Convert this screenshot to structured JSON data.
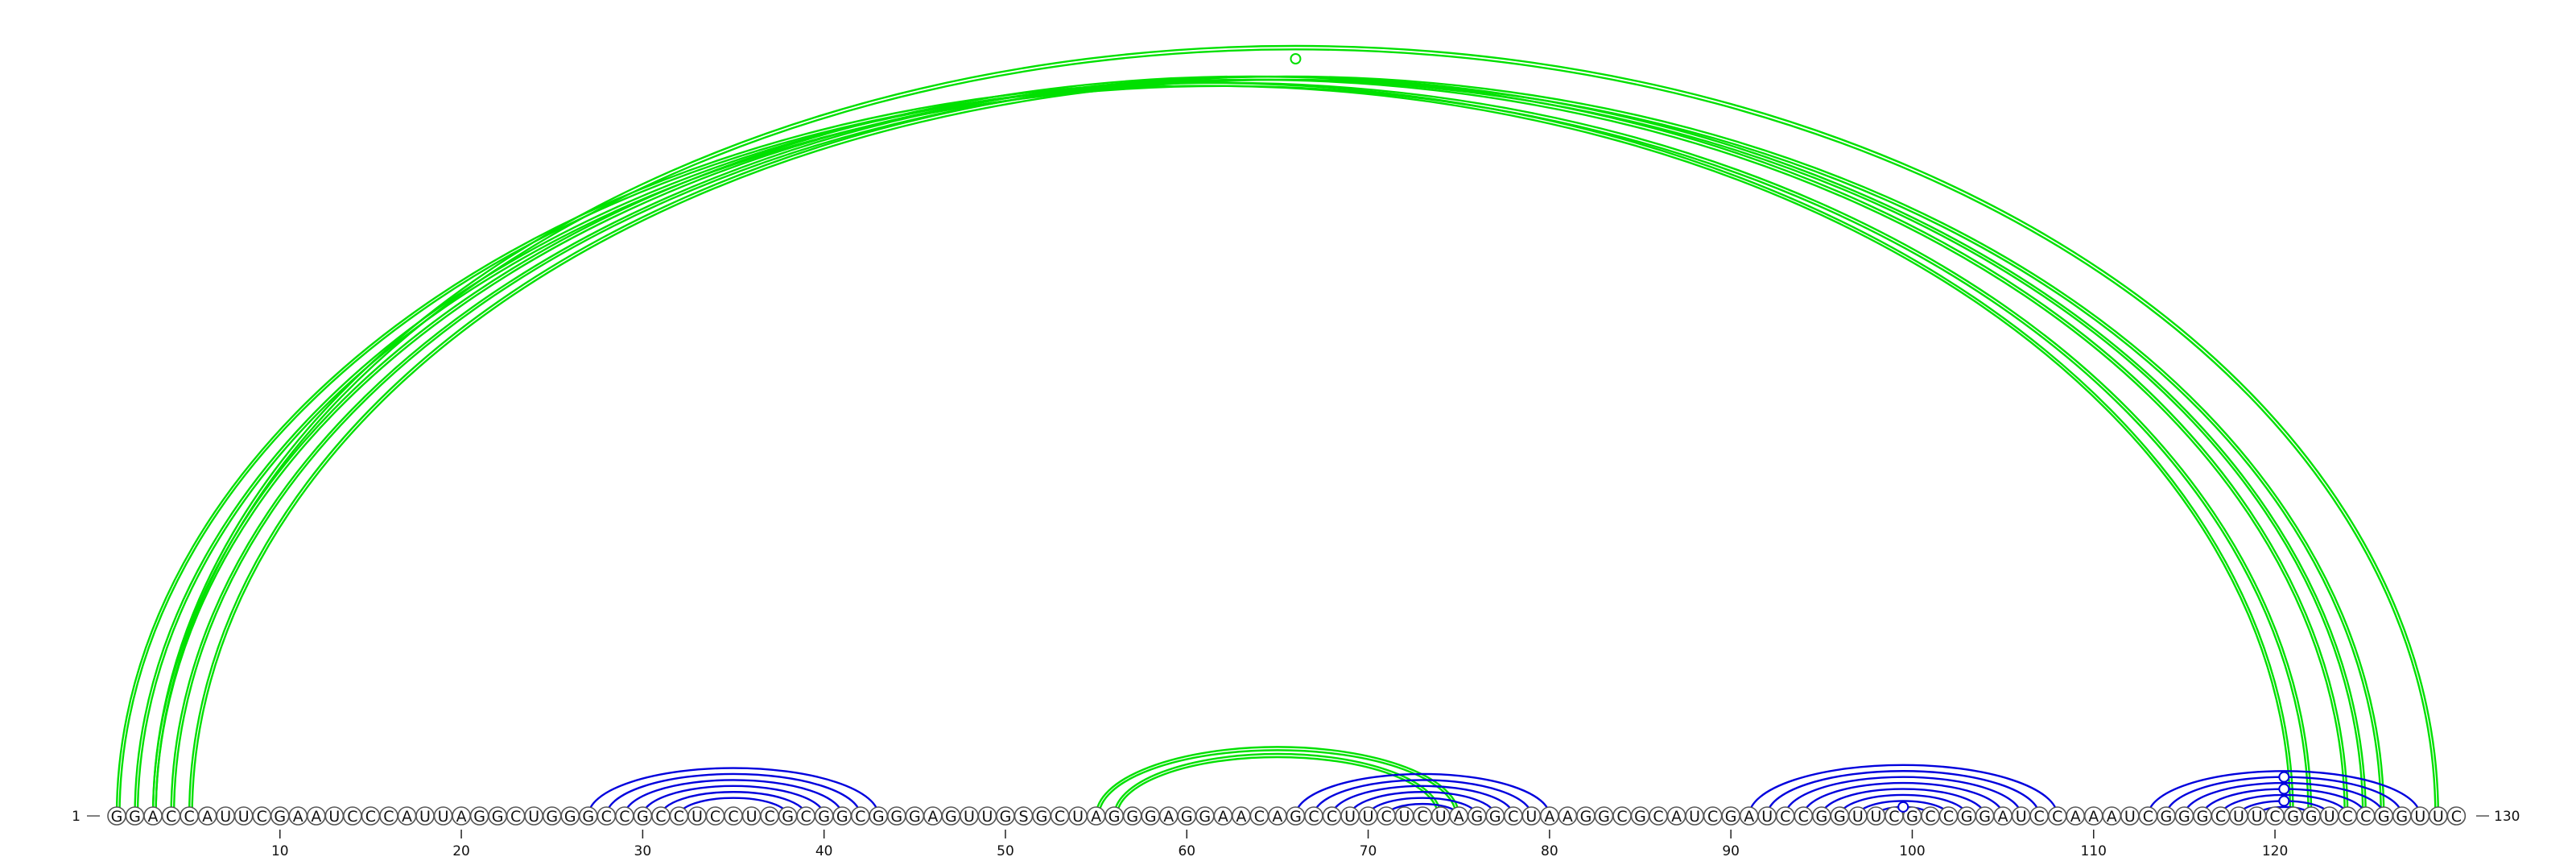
{
  "sequence": "GGACCAUUCGAAUCCCAUUAGGCUGGGCCGCCUCCUCGCGGCGGGAGUUGSGCUAGGGAGGAACAGCCUUCUCUAGGCUAAGGCGCAUCGAUCCGGUUCGCCGGAUCCAAAUCGGGCUUCGGUCCGGUUC",
  "start_label": "1",
  "end_label": "130",
  "ticks": [
    {
      "pos": 10,
      "label": "10"
    },
    {
      "pos": 20,
      "label": "20"
    },
    {
      "pos": 30,
      "label": "30"
    },
    {
      "pos": 40,
      "label": "40"
    },
    {
      "pos": 50,
      "label": "50"
    },
    {
      "pos": 60,
      "label": "60"
    },
    {
      "pos": 70,
      "label": "70"
    },
    {
      "pos": 80,
      "label": "80"
    },
    {
      "pos": 90,
      "label": "90"
    },
    {
      "pos": 100,
      "label": "100"
    },
    {
      "pos": 110,
      "label": "110"
    },
    {
      "pos": 120,
      "label": "120"
    },
    {
      "pos": 130,
      "label": "130"
    }
  ],
  "colors": {
    "upper_arcs": "#00e000",
    "lower_arcs": "#0000dd",
    "text": "#111111",
    "nucleotide_outline": "#555555"
  },
  "pairs": {
    "upper": [
      [
        1,
        121
      ],
      [
        2,
        122
      ],
      [
        3,
        124
      ],
      [
        4,
        125
      ],
      [
        5,
        126
      ],
      [
        3,
        129
      ],
      [
        55,
        75
      ],
      [
        56,
        74
      ]
    ],
    "lower": [
      [
        27,
        43
      ],
      [
        28,
        42
      ],
      [
        29,
        41
      ],
      [
        30,
        40
      ],
      [
        31,
        39
      ],
      [
        32,
        38
      ],
      [
        66,
        80
      ],
      [
        67,
        79
      ],
      [
        68,
        78
      ],
      [
        69,
        77
      ],
      [
        70,
        76
      ],
      [
        71,
        75
      ],
      [
        91,
        108
      ],
      [
        92,
        107
      ],
      [
        93,
        106
      ],
      [
        94,
        105
      ],
      [
        95,
        104
      ],
      [
        96,
        103
      ],
      [
        97,
        102
      ],
      [
        98,
        101
      ],
      [
        113,
        128
      ],
      [
        114,
        127
      ],
      [
        115,
        126
      ],
      [
        116,
        125
      ],
      [
        117,
        124
      ],
      [
        118,
        123
      ],
      [
        119,
        122
      ]
    ],
    "noncanonical_markers": [
      {
        "side": "upper",
        "pair": [
          3,
          129
        ]
      },
      {
        "side": "lower",
        "pair": [
          114,
          127
        ]
      },
      {
        "side": "lower",
        "pair": [
          116,
          125
        ]
      },
      {
        "side": "lower",
        "pair": [
          98,
          101
        ]
      },
      {
        "side": "lower",
        "pair": [
          118,
          123
        ]
      }
    ]
  }
}
